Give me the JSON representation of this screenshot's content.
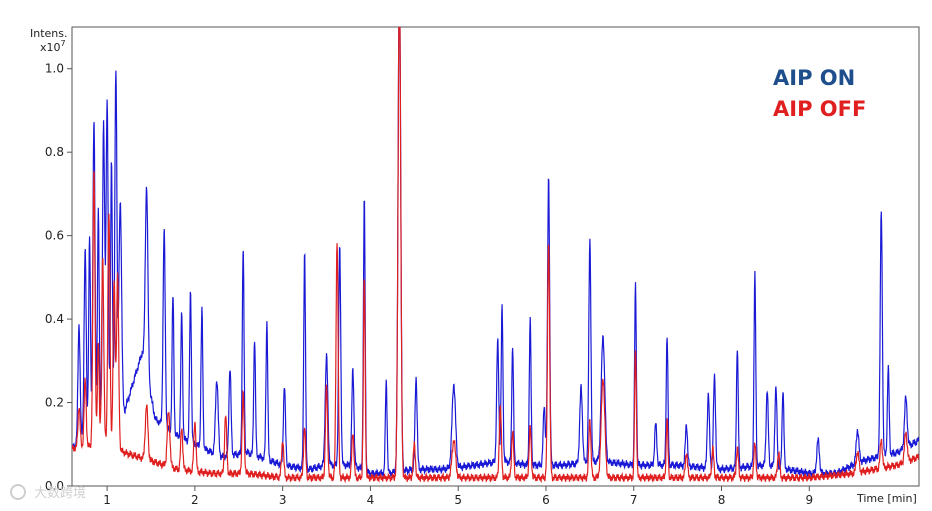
{
  "chart_data": {
    "type": "line",
    "ylabel": "Intens.",
    "yunit_base": "x10",
    "yunit_exp": "7",
    "xlabel": "Time [min]",
    "xlim": [
      0.6,
      10.25
    ],
    "ylim": [
      0,
      1.1
    ],
    "xticks": [
      "1",
      "2",
      "3",
      "4",
      "5",
      "6",
      "7",
      "8",
      "9"
    ],
    "yticks": [
      "0.0",
      "0.2",
      "0.4",
      "0.6",
      "0.8",
      "1.0"
    ],
    "legend_position": "top-right",
    "grid": false,
    "series": [
      {
        "name": "AIP ON",
        "color": "#1a1ad6",
        "legend_color": "#1f4e8c",
        "baseline": [
          [
            0.6,
            0.09
          ],
          [
            1.0,
            0.18
          ],
          [
            1.2,
            0.18
          ],
          [
            1.4,
            0.32
          ],
          [
            1.55,
            0.16
          ],
          [
            1.8,
            0.12
          ],
          [
            2.0,
            0.1
          ],
          [
            2.3,
            0.07
          ],
          [
            2.6,
            0.08
          ],
          [
            3.0,
            0.05
          ],
          [
            3.3,
            0.04
          ],
          [
            3.5,
            0.05
          ],
          [
            3.8,
            0.05
          ],
          [
            4.0,
            0.03
          ],
          [
            4.2,
            0.03
          ],
          [
            4.5,
            0.04
          ],
          [
            4.8,
            0.04
          ],
          [
            5.2,
            0.05
          ],
          [
            5.5,
            0.06
          ],
          [
            5.8,
            0.05
          ],
          [
            6.2,
            0.05
          ],
          [
            6.6,
            0.06
          ],
          [
            7.0,
            0.05
          ],
          [
            7.5,
            0.05
          ],
          [
            8.0,
            0.04
          ],
          [
            8.5,
            0.05
          ],
          [
            9.0,
            0.03
          ],
          [
            9.3,
            0.03
          ],
          [
            9.6,
            0.06
          ],
          [
            10.0,
            0.08
          ],
          [
            10.25,
            0.11
          ]
        ],
        "peaks": [
          [
            0.68,
            0.28,
            0.012
          ],
          [
            0.75,
            0.44,
            0.012
          ],
          [
            0.8,
            0.46,
            0.01
          ],
          [
            0.85,
            0.73,
            0.012
          ],
          [
            0.9,
            0.5,
            0.01
          ],
          [
            0.96,
            0.7,
            0.012
          ],
          [
            1.0,
            0.74,
            0.012
          ],
          [
            1.05,
            0.6,
            0.01
          ],
          [
            1.1,
            0.82,
            0.012
          ],
          [
            1.15,
            0.5,
            0.015
          ],
          [
            1.45,
            0.45,
            0.015
          ],
          [
            1.65,
            0.47,
            0.012
          ],
          [
            1.75,
            0.33,
            0.01
          ],
          [
            1.85,
            0.3,
            0.01
          ],
          [
            1.95,
            0.36,
            0.01
          ],
          [
            2.08,
            0.33,
            0.01
          ],
          [
            2.25,
            0.18,
            0.015
          ],
          [
            2.4,
            0.21,
            0.012
          ],
          [
            2.55,
            0.49,
            0.01
          ],
          [
            2.68,
            0.28,
            0.01
          ],
          [
            2.82,
            0.33,
            0.01
          ],
          [
            3.02,
            0.19,
            0.012
          ],
          [
            3.25,
            0.52,
            0.01
          ],
          [
            3.5,
            0.26,
            0.015
          ],
          [
            3.65,
            0.52,
            0.012
          ],
          [
            3.8,
            0.23,
            0.012
          ],
          [
            3.93,
            0.65,
            0.01
          ],
          [
            4.18,
            0.22,
            0.01
          ],
          [
            4.33,
            1.2,
            0.015
          ],
          [
            4.52,
            0.22,
            0.012
          ],
          [
            4.95,
            0.2,
            0.02
          ],
          [
            5.45,
            0.29,
            0.012
          ],
          [
            5.5,
            0.37,
            0.01
          ],
          [
            5.62,
            0.28,
            0.01
          ],
          [
            5.82,
            0.35,
            0.01
          ],
          [
            5.98,
            0.14,
            0.012
          ],
          [
            6.03,
            0.69,
            0.012
          ],
          [
            6.4,
            0.18,
            0.015
          ],
          [
            6.5,
            0.53,
            0.012
          ],
          [
            6.65,
            0.3,
            0.02
          ],
          [
            7.02,
            0.43,
            0.01
          ],
          [
            7.25,
            0.1,
            0.012
          ],
          [
            7.38,
            0.31,
            0.01
          ],
          [
            7.6,
            0.1,
            0.012
          ],
          [
            7.85,
            0.18,
            0.012
          ],
          [
            7.92,
            0.22,
            0.012
          ],
          [
            8.18,
            0.29,
            0.01
          ],
          [
            8.38,
            0.46,
            0.01
          ],
          [
            8.52,
            0.18,
            0.012
          ],
          [
            8.62,
            0.19,
            0.012
          ],
          [
            8.7,
            0.19,
            0.01
          ],
          [
            9.1,
            0.08,
            0.015
          ],
          [
            9.55,
            0.08,
            0.015
          ],
          [
            9.82,
            0.59,
            0.012
          ],
          [
            9.9,
            0.21,
            0.01
          ],
          [
            10.1,
            0.12,
            0.015
          ]
        ]
      },
      {
        "name": "AIP OFF",
        "color": "#e02020",
        "legend_color": "#e02020",
        "baseline": [
          [
            0.6,
            0.09
          ],
          [
            1.0,
            0.1
          ],
          [
            1.2,
            0.08
          ],
          [
            1.5,
            0.06
          ],
          [
            1.8,
            0.04
          ],
          [
            2.2,
            0.03
          ],
          [
            2.6,
            0.03
          ],
          [
            3.0,
            0.02
          ],
          [
            3.5,
            0.02
          ],
          [
            4.0,
            0.02
          ],
          [
            4.5,
            0.02
          ],
          [
            5.0,
            0.02
          ],
          [
            5.5,
            0.02
          ],
          [
            6.0,
            0.02
          ],
          [
            6.5,
            0.02
          ],
          [
            7.0,
            0.02
          ],
          [
            7.5,
            0.02
          ],
          [
            8.0,
            0.02
          ],
          [
            8.5,
            0.02
          ],
          [
            9.0,
            0.02
          ],
          [
            9.5,
            0.03
          ],
          [
            10.0,
            0.05
          ],
          [
            10.25,
            0.07
          ]
        ],
        "peaks": [
          [
            0.68,
            0.1,
            0.012
          ],
          [
            0.75,
            0.16,
            0.012
          ],
          [
            0.85,
            0.66,
            0.012
          ],
          [
            0.9,
            0.25,
            0.01
          ],
          [
            0.95,
            0.45,
            0.012
          ],
          [
            1.02,
            0.56,
            0.012
          ],
          [
            1.08,
            0.4,
            0.012
          ],
          [
            1.12,
            0.42,
            0.012
          ],
          [
            1.45,
            0.13,
            0.015
          ],
          [
            1.7,
            0.13,
            0.015
          ],
          [
            1.85,
            0.1,
            0.012
          ],
          [
            2.0,
            0.12,
            0.012
          ],
          [
            2.35,
            0.14,
            0.012
          ],
          [
            2.55,
            0.19,
            0.012
          ],
          [
            3.0,
            0.09,
            0.012
          ],
          [
            3.25,
            0.12,
            0.012
          ],
          [
            3.5,
            0.22,
            0.012
          ],
          [
            3.62,
            0.57,
            0.012
          ],
          [
            3.8,
            0.11,
            0.012
          ],
          [
            3.93,
            0.48,
            0.01
          ],
          [
            4.33,
            1.2,
            0.015
          ],
          [
            4.5,
            0.08,
            0.012
          ],
          [
            4.95,
            0.09,
            0.02
          ],
          [
            5.48,
            0.17,
            0.012
          ],
          [
            5.62,
            0.11,
            0.012
          ],
          [
            5.82,
            0.12,
            0.012
          ],
          [
            6.03,
            0.57,
            0.012
          ],
          [
            6.5,
            0.14,
            0.012
          ],
          [
            6.65,
            0.24,
            0.02
          ],
          [
            7.02,
            0.31,
            0.01
          ],
          [
            7.38,
            0.14,
            0.01
          ],
          [
            7.6,
            0.06,
            0.012
          ],
          [
            7.9,
            0.07,
            0.012
          ],
          [
            8.18,
            0.07,
            0.012
          ],
          [
            8.38,
            0.08,
            0.012
          ],
          [
            8.65,
            0.06,
            0.012
          ],
          [
            9.55,
            0.05,
            0.015
          ],
          [
            9.82,
            0.07,
            0.012
          ],
          [
            10.1,
            0.07,
            0.015
          ]
        ]
      }
    ]
  },
  "watermark": "大数跨境"
}
